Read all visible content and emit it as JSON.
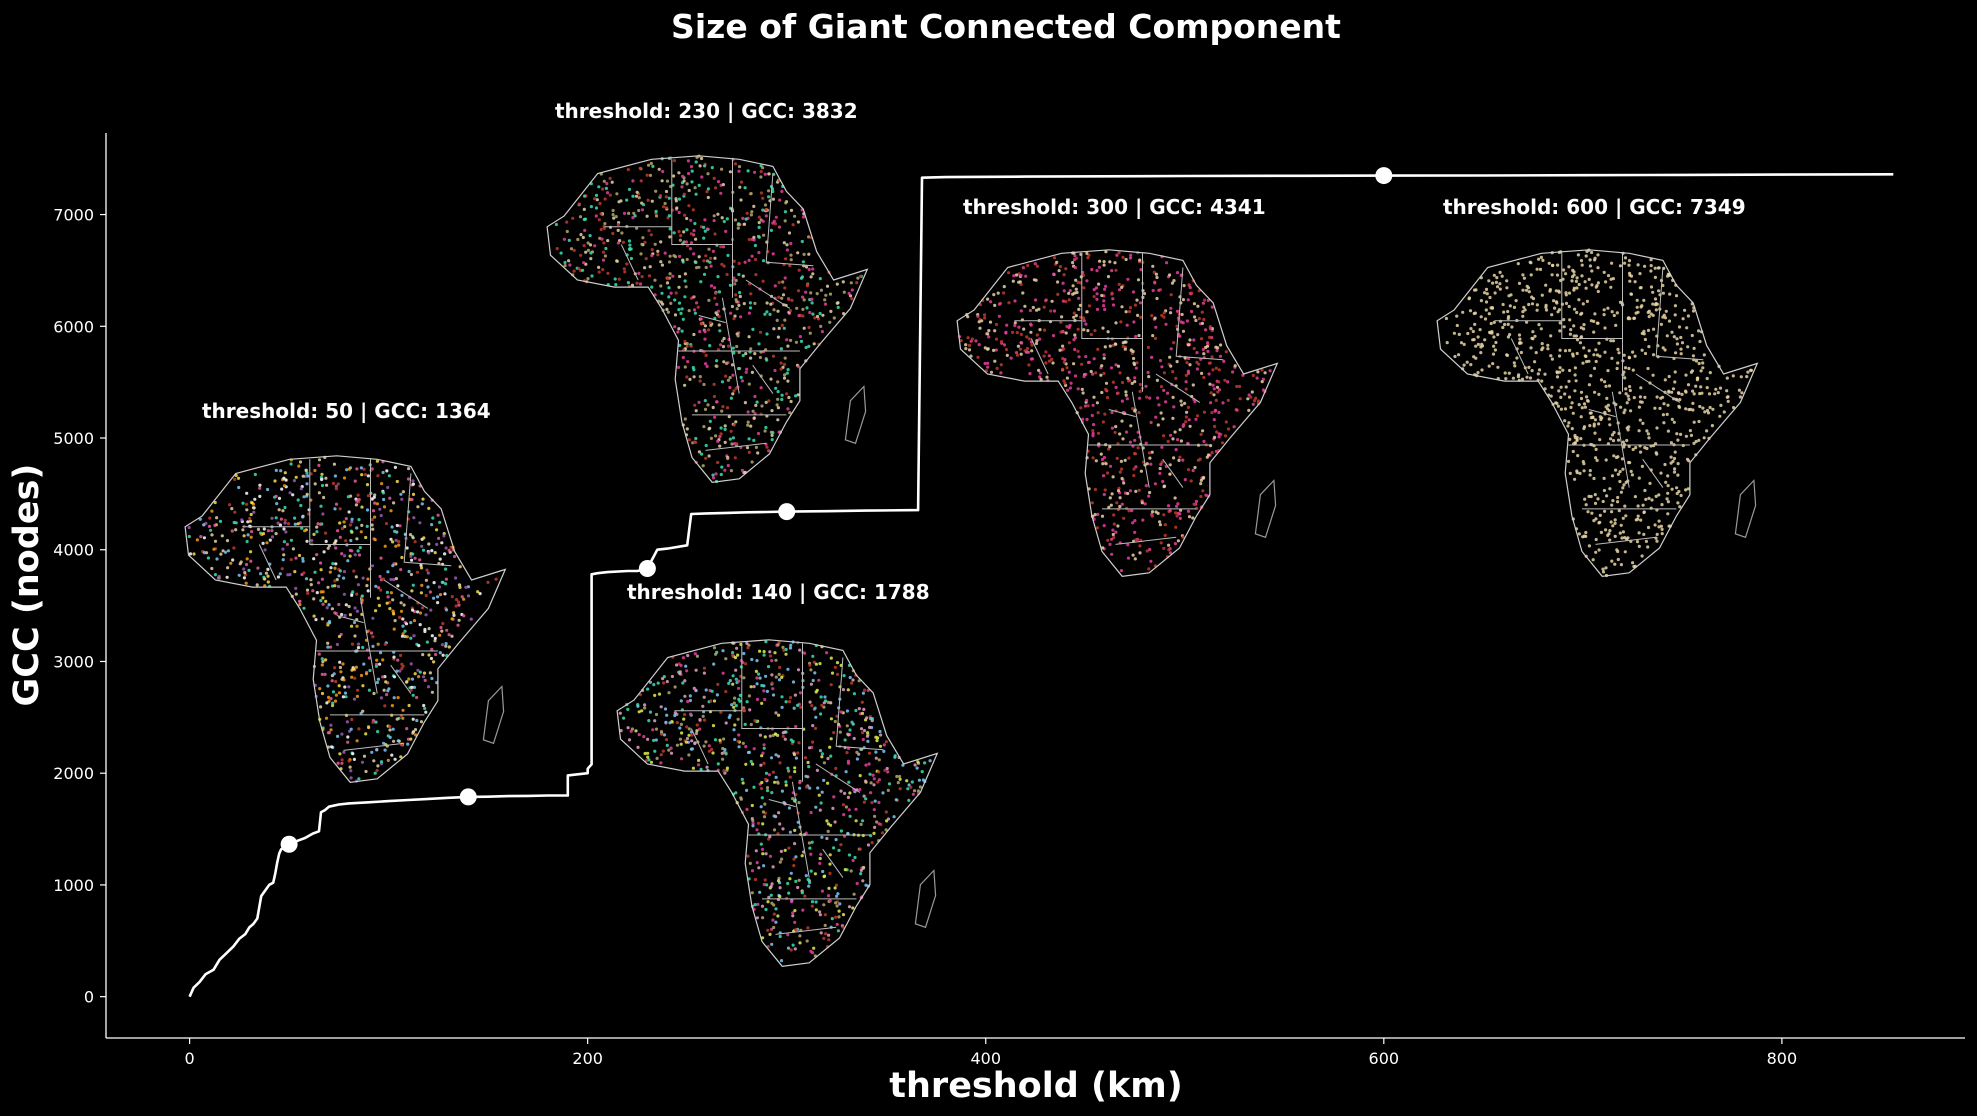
{
  "chart_data": {
    "type": "line",
    "title": "Size of Giant Connected Component",
    "xlabel": "threshold (km)",
    "ylabel": "GCC (nodes)",
    "xlim": [
      -42,
      892
    ],
    "ylim": [
      -370,
      7730
    ],
    "xticks": [
      "0",
      "200",
      "400",
      "600",
      "800"
    ],
    "xtick_values": [
      0,
      200,
      400,
      600,
      800
    ],
    "yticks": [
      "0",
      "1000",
      "2000",
      "3000",
      "4000",
      "5000",
      "6000",
      "7000"
    ],
    "ytick_values": [
      0,
      1000,
      2000,
      3000,
      4000,
      5000,
      6000,
      7000
    ],
    "grid": false,
    "line_color": "#ffffff",
    "background": "#000000",
    "series": [
      {
        "x": [
          0,
          2,
          5,
          8,
          12,
          15,
          18,
          22,
          25,
          28,
          30,
          32,
          34,
          36,
          38,
          40,
          42,
          43,
          44,
          45,
          46,
          48,
          50,
          52,
          55,
          58,
          62,
          65,
          66,
          68,
          70,
          75,
          80,
          90,
          100,
          110,
          120,
          130,
          140,
          150,
          160,
          170,
          180,
          190,
          190,
          200,
          200,
          202,
          202,
          205,
          210,
          220,
          225,
          230,
          235,
          240,
          250,
          252,
          260,
          270,
          280,
          290,
          300,
          320,
          340,
          366,
          368,
          380,
          420,
          500,
          560,
          600,
          650,
          700,
          750,
          800,
          856
        ],
        "y": [
          0,
          80,
          130,
          200,
          240,
          330,
          380,
          450,
          520,
          560,
          620,
          650,
          700,
          900,
          950,
          1000,
          1020,
          1100,
          1200,
          1280,
          1320,
          1340,
          1364,
          1380,
          1400,
          1420,
          1460,
          1480,
          1650,
          1670,
          1700,
          1720,
          1730,
          1740,
          1750,
          1760,
          1770,
          1780,
          1788,
          1790,
          1795,
          1797,
          1800,
          1800,
          1980,
          2000,
          2040,
          2080,
          3780,
          3790,
          3800,
          3810,
          3810,
          3832,
          4000,
          4010,
          4040,
          4320,
          4325,
          4330,
          4335,
          4338,
          4341,
          4345,
          4350,
          4355,
          7330,
          7335,
          7340,
          7345,
          7347,
          7349,
          7350,
          7352,
          7355,
          7358,
          7360
        ]
      }
    ],
    "markers": [
      {
        "x": 50,
        "y": 1364
      },
      {
        "x": 140,
        "y": 1788
      },
      {
        "x": 230,
        "y": 3832
      },
      {
        "x": 300,
        "y": 4341
      },
      {
        "x": 600,
        "y": 7349
      }
    ],
    "annotations": [
      "threshold: 50 | GCC: 1364",
      "threshold: 140 | GCC: 1788",
      "threshold: 230 | GCC: 3832",
      "threshold: 300 | GCC: 4341",
      "threshold: 600 | GCC: 7349"
    ],
    "insets": [
      {
        "label": "threshold: 50 | GCC: 1364",
        "palette": [
          "#e85d9c",
          "#39e0b0",
          "#f7e14b",
          "#7bc8f6",
          "#c0392b",
          "#f39c12",
          "#ffffff",
          "#9b59b6",
          "#e6d3a3"
        ]
      },
      {
        "label": "threshold: 140 | GCC: 1788",
        "palette": [
          "#e83e9c",
          "#7bc8f6",
          "#e0f04b",
          "#39e0b0",
          "#e6a0c4",
          "#b5a86a",
          "#c0392b"
        ]
      },
      {
        "label": "threshold: 230 | GCC: 3832",
        "palette": [
          "#e83e9c",
          "#39e0b0",
          "#b5a86a",
          "#c0392b",
          "#e6d3a3"
        ]
      },
      {
        "label": "threshold: 300 | GCC: 4341",
        "palette": [
          "#e83e9c",
          "#e6d3a3",
          "#c0392b"
        ]
      },
      {
        "label": "threshold: 600 | GCC: 7349",
        "palette": [
          "#e6d3a3"
        ]
      }
    ]
  }
}
